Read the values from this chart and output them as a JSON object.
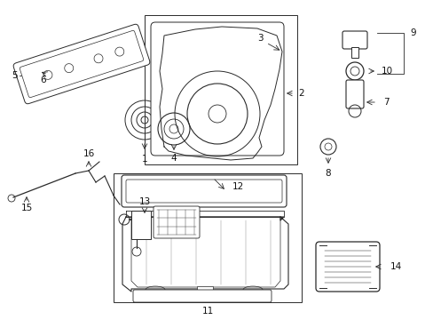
{
  "bg_color": "#ffffff",
  "line_color": "#2a2a2a",
  "label_color": "#111111",
  "fig_width": 4.89,
  "fig_height": 3.6,
  "dpi": 100
}
